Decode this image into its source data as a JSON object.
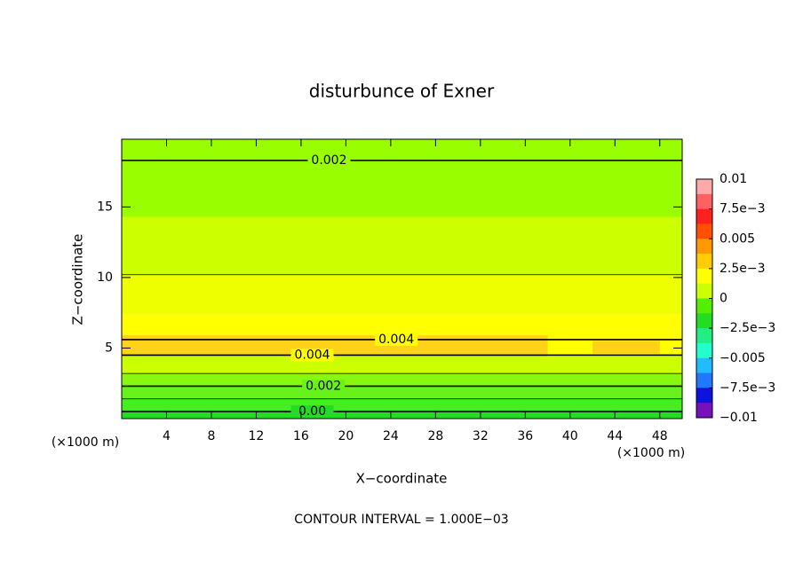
{
  "chart_data": {
    "type": "contour",
    "title": "disturbunce of Exner",
    "x_label": "X−coordinate",
    "y_label": "Z−coordinate",
    "x_unit_left": "(×1000 m)",
    "x_unit_right": "(×1000 m)",
    "note": "CONTOUR INTERVAL = 1.000E−03",
    "xlim": [
      0,
      50
    ],
    "ylim": [
      0,
      19.8
    ],
    "xticks": [
      4,
      8,
      12,
      16,
      20,
      24,
      28,
      32,
      36,
      40,
      44,
      48
    ],
    "yticks": [
      5,
      10,
      15
    ],
    "fill_layers": [
      {
        "x": [
          0,
          50
        ],
        "z": [
          0,
          0.6
        ],
        "color": "#22dd22"
      },
      {
        "x": [
          0,
          50
        ],
        "z": [
          0.6,
          1.4
        ],
        "color": "#44ee22"
      },
      {
        "x": [
          0,
          50
        ],
        "z": [
          1.4,
          2.3
        ],
        "color": "#66f21a"
      },
      {
        "x": [
          0,
          50
        ],
        "z": [
          2.3,
          3.2
        ],
        "color": "#88f810"
      },
      {
        "x": [
          0,
          50
        ],
        "z": [
          3.2,
          4.4
        ],
        "color": "#ccff00"
      },
      {
        "x": [
          0,
          50
        ],
        "z": [
          4.4,
          7.4
        ],
        "color": "#ffff00"
      },
      {
        "x": [
          0,
          50
        ],
        "z": [
          7.4,
          10.2
        ],
        "color": "#eeff00"
      },
      {
        "x": [
          0,
          50
        ],
        "z": [
          10.2,
          14.3
        ],
        "color": "#ccff00"
      },
      {
        "x": [
          0,
          50
        ],
        "z": [
          14.3,
          19.8
        ],
        "color": "#99ff00"
      },
      {
        "x": [
          0,
          38
        ],
        "z": [
          4.4,
          5.9
        ],
        "color": "#ffd21a"
      },
      {
        "x": [
          42,
          48
        ],
        "z": [
          4.6,
          5.5
        ],
        "color": "#ffd21a"
      }
    ],
    "contours": [
      {
        "value": 0.002,
        "z": 18.3,
        "label": "0.002",
        "label_x": 18.5
      },
      {
        "value": 0.003,
        "z": 10.2
      },
      {
        "value": 0.004,
        "z": 5.6,
        "label": "0.004",
        "label_x": 24.5
      },
      {
        "value": 0.004,
        "z": 4.5,
        "label": "0.004",
        "label_x": 17
      },
      {
        "value": 0.003,
        "z": 3.2
      },
      {
        "value": 0.002,
        "z": 2.3,
        "label": "0.002",
        "label_x": 18
      },
      {
        "value": 0.001,
        "z": 1.4
      },
      {
        "value": 0,
        "z": 0.5,
        "label": "0.00",
        "label_x": 17
      }
    ],
    "clim": [
      -0.01,
      0.01
    ],
    "colorbar_colors": [
      "#ffaaaa",
      "#ff6060",
      "#ff2020",
      "#ff5000",
      "#ff9900",
      "#ffcc00",
      "#ffff00",
      "#ccff00",
      "#55ee00",
      "#22dd22",
      "#22ee88",
      "#22ffcc",
      "#22bbff",
      "#2277ff",
      "#1111dd",
      "#7711bb"
    ],
    "colorbar_ticks": [
      {
        "value": 0.01,
        "label": "0.01"
      },
      {
        "value": 0.0075,
        "label": "7.5e−3"
      },
      {
        "value": 0.005,
        "label": "0.005"
      },
      {
        "value": 0.0025,
        "label": "2.5e−3"
      },
      {
        "value": 0,
        "label": "0"
      },
      {
        "value": -0.0025,
        "label": "−2.5e−3"
      },
      {
        "value": -0.005,
        "label": "−0.005"
      },
      {
        "value": -0.0075,
        "label": "−7.5e−3"
      },
      {
        "value": -0.01,
        "label": "−0.01"
      }
    ]
  }
}
